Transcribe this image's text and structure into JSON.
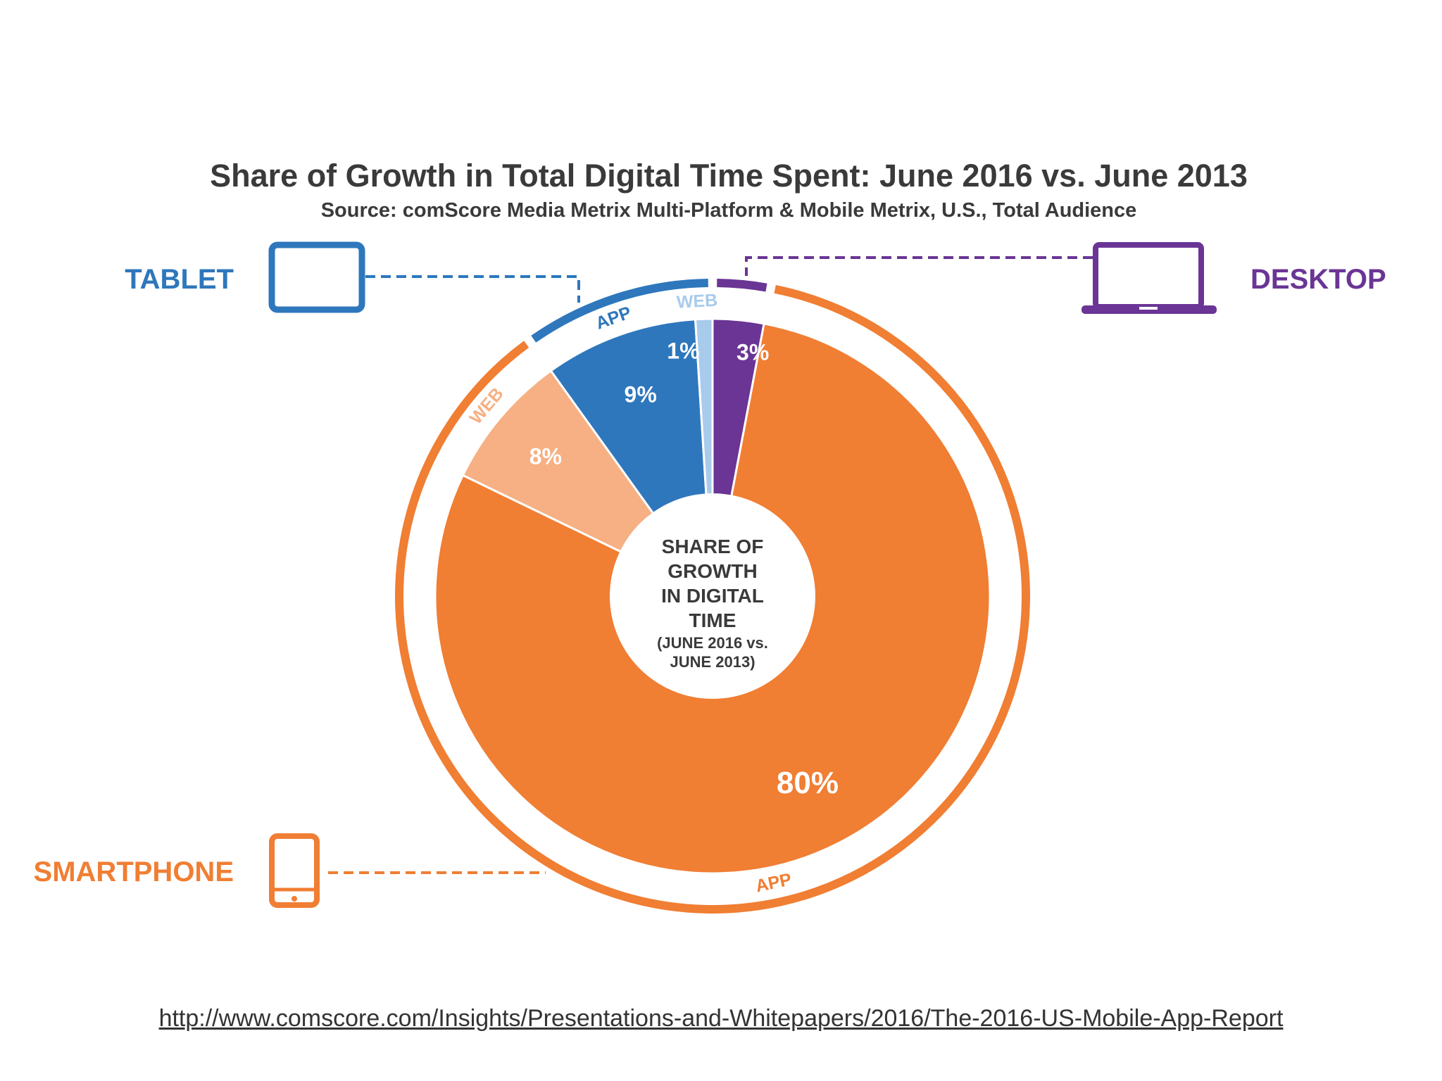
{
  "chart_data": {
    "type": "pie",
    "title": "Share of Growth in Total Digital Time Spent: June 2016 vs. June 2013",
    "subtitle": "Source: comScore Media Metrix Multi-Platform & Mobile Metrix, U.S., Total Audience",
    "center_label": {
      "lines": [
        "SHARE OF",
        "GROWTH",
        "IN DIGITAL",
        "TIME"
      ],
      "sub_lines": [
        "(JUNE 2016 vs.",
        "JUNE 2013)"
      ]
    },
    "slices": [
      {
        "platform": "DESKTOP",
        "segment": "",
        "label": "3%",
        "value": 3,
        "color": "#6A3595"
      },
      {
        "platform": "SMARTPHONE",
        "segment": "APP",
        "label": "80%",
        "value": 80,
        "color": "#F07E33"
      },
      {
        "platform": "SMARTPHONE",
        "segment": "WEB",
        "label": "8%",
        "value": 8,
        "color": "#F6B083"
      },
      {
        "platform": "TABLET",
        "segment": "APP",
        "label": "9%",
        "value": 9,
        "color": "#2E77BC"
      },
      {
        "platform": "TABLET",
        "segment": "WEB",
        "label": "1%",
        "value": 1,
        "color": "#A9CBEB"
      }
    ],
    "platforms": [
      {
        "name": "DESKTOP",
        "value": 3,
        "color": "#6A3595"
      },
      {
        "name": "SMARTPHONE",
        "value": 88,
        "color": "#F07E33"
      },
      {
        "name": "TABLET",
        "value": 10,
        "color": "#2E77BC"
      }
    ],
    "legend": [
      {
        "name": "TABLET",
        "icon": "tablet-icon",
        "color": "#2E77BC"
      },
      {
        "name": "DESKTOP",
        "icon": "laptop-icon",
        "color": "#6A3595"
      },
      {
        "name": "SMARTPHONE",
        "icon": "smartphone-icon",
        "color": "#F07E33"
      }
    ]
  },
  "footer": {
    "link_text": "http://www.comscore.com/Insights/Presentations-and-Whitepapers/2016/The-2016-US-Mobile-App-Report"
  }
}
